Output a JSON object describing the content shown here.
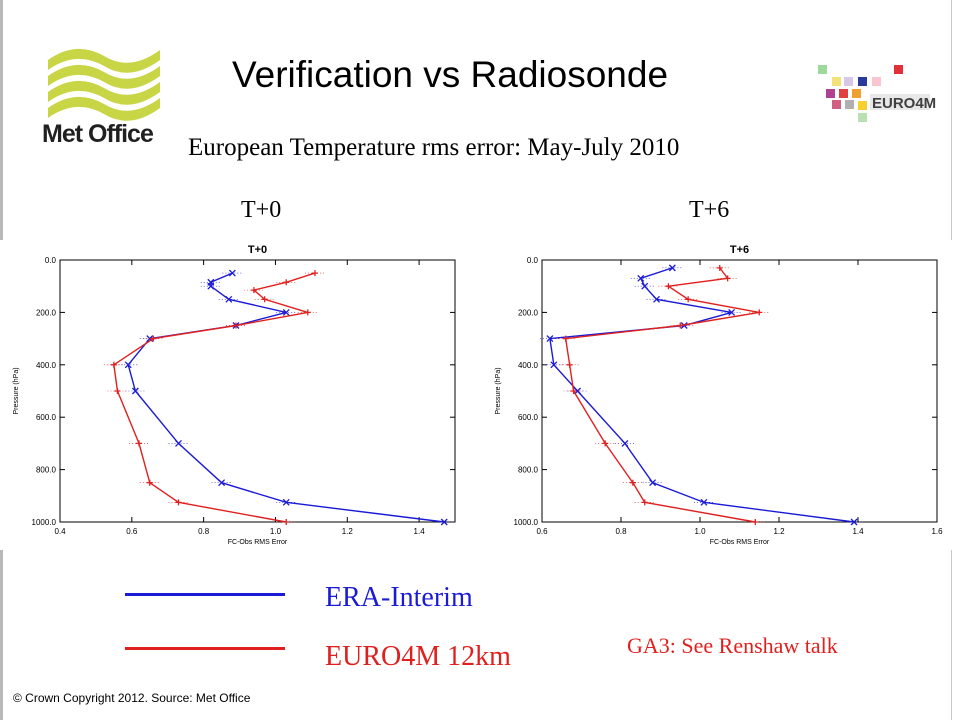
{
  "slide": {
    "title": "Verification vs Radiosonde",
    "subtitle": "European Temperature rms error: May-July 2010",
    "panel_left_label": "T+0",
    "panel_right_label": "T+6",
    "note": "GA3: See Renshaw talk",
    "copyright": "© Crown Copyright 2012. Source: Met Office"
  },
  "logos": {
    "metoffice": {
      "text": "Met Office",
      "icon": "met-office-waves-logo",
      "wave_color": "#c8d545"
    },
    "euro4m": {
      "text": "EURO4M",
      "icon": "euro4m-squares-logo"
    }
  },
  "legend": [
    {
      "label": "ERA-Interim",
      "color": "#1b1bd6"
    },
    {
      "label": "EURO4M 12km",
      "color": "#e0201e"
    }
  ],
  "chart_data": [
    {
      "type": "line",
      "title": "T+0",
      "xlabel": "FC-Obs RMS Error",
      "ylabel": "Pressure (hPa)",
      "xlim": [
        0.4,
        1.5
      ],
      "ylim": [
        1000,
        0
      ],
      "y_inverted": true,
      "xticks": [
        "0.4",
        "0.6",
        "0.8",
        "1.0",
        "1.2",
        "1.4"
      ],
      "yticks": [
        "0.0",
        "200.0",
        "400.0",
        "600.0",
        "800.0",
        "1000.0"
      ],
      "series": [
        {
          "color": "#1b1bd6",
          "marker": "x",
          "points": [
            {
              "x": 0.88,
              "y": 50
            },
            {
              "x": 0.82,
              "y": 85
            },
            {
              "x": 0.82,
              "y": 100
            },
            {
              "x": 0.87,
              "y": 150
            },
            {
              "x": 1.03,
              "y": 200
            },
            {
              "x": 0.89,
              "y": 250
            },
            {
              "x": 0.65,
              "y": 300
            },
            {
              "x": 0.59,
              "y": 400
            },
            {
              "x": 0.61,
              "y": 500
            },
            {
              "x": 0.73,
              "y": 700
            },
            {
              "x": 0.85,
              "y": 850
            },
            {
              "x": 1.03,
              "y": 925
            },
            {
              "x": 1.47,
              "y": 1000
            }
          ]
        },
        {
          "color": "#e0201e",
          "marker": "+",
          "points": [
            {
              "x": 1.11,
              "y": 50
            },
            {
              "x": 1.03,
              "y": 85
            },
            {
              "x": 0.94,
              "y": 115
            },
            {
              "x": 0.97,
              "y": 150
            },
            {
              "x": 1.09,
              "y": 200
            },
            {
              "x": 0.89,
              "y": 250
            },
            {
              "x": 0.66,
              "y": 300
            },
            {
              "x": 0.55,
              "y": 400
            },
            {
              "x": 0.56,
              "y": 500
            },
            {
              "x": 0.62,
              "y": 700
            },
            {
              "x": 0.65,
              "y": 850
            },
            {
              "x": 0.73,
              "y": 925
            },
            {
              "x": 1.03,
              "y": 1000
            }
          ]
        }
      ]
    },
    {
      "type": "line",
      "title": "T+6",
      "xlabel": "FC-Obs RMS Error",
      "ylabel": "Pressure (hPa)",
      "xlim": [
        0.6,
        1.6
      ],
      "ylim": [
        1000,
        0
      ],
      "y_inverted": true,
      "xticks": [
        "0.6",
        "0.8",
        "1.0",
        "1.2",
        "1.4",
        "1.6"
      ],
      "yticks": [
        "0.0",
        "200.0",
        "400.0",
        "600.0",
        "800.0",
        "1000.0"
      ],
      "series": [
        {
          "color": "#1b1bd6",
          "marker": "x",
          "points": [
            {
              "x": 0.93,
              "y": 30
            },
            {
              "x": 0.85,
              "y": 70
            },
            {
              "x": 0.86,
              "y": 100
            },
            {
              "x": 0.89,
              "y": 150
            },
            {
              "x": 1.08,
              "y": 200
            },
            {
              "x": 0.96,
              "y": 250
            },
            {
              "x": 0.62,
              "y": 300
            },
            {
              "x": 0.63,
              "y": 400
            },
            {
              "x": 0.69,
              "y": 500
            },
            {
              "x": 0.81,
              "y": 700
            },
            {
              "x": 0.88,
              "y": 850
            },
            {
              "x": 1.01,
              "y": 925
            },
            {
              "x": 1.39,
              "y": 1000
            }
          ]
        },
        {
          "color": "#e0201e",
          "marker": "+",
          "points": [
            {
              "x": 1.05,
              "y": 30
            },
            {
              "x": 1.07,
              "y": 70
            },
            {
              "x": 0.92,
              "y": 100
            },
            {
              "x": 0.97,
              "y": 150
            },
            {
              "x": 1.15,
              "y": 200
            },
            {
              "x": 0.95,
              "y": 250
            },
            {
              "x": 0.66,
              "y": 300
            },
            {
              "x": 0.67,
              "y": 400
            },
            {
              "x": 0.68,
              "y": 500
            },
            {
              "x": 0.76,
              "y": 700
            },
            {
              "x": 0.83,
              "y": 850
            },
            {
              "x": 0.86,
              "y": 925
            },
            {
              "x": 1.14,
              "y": 1000
            }
          ]
        }
      ]
    }
  ]
}
